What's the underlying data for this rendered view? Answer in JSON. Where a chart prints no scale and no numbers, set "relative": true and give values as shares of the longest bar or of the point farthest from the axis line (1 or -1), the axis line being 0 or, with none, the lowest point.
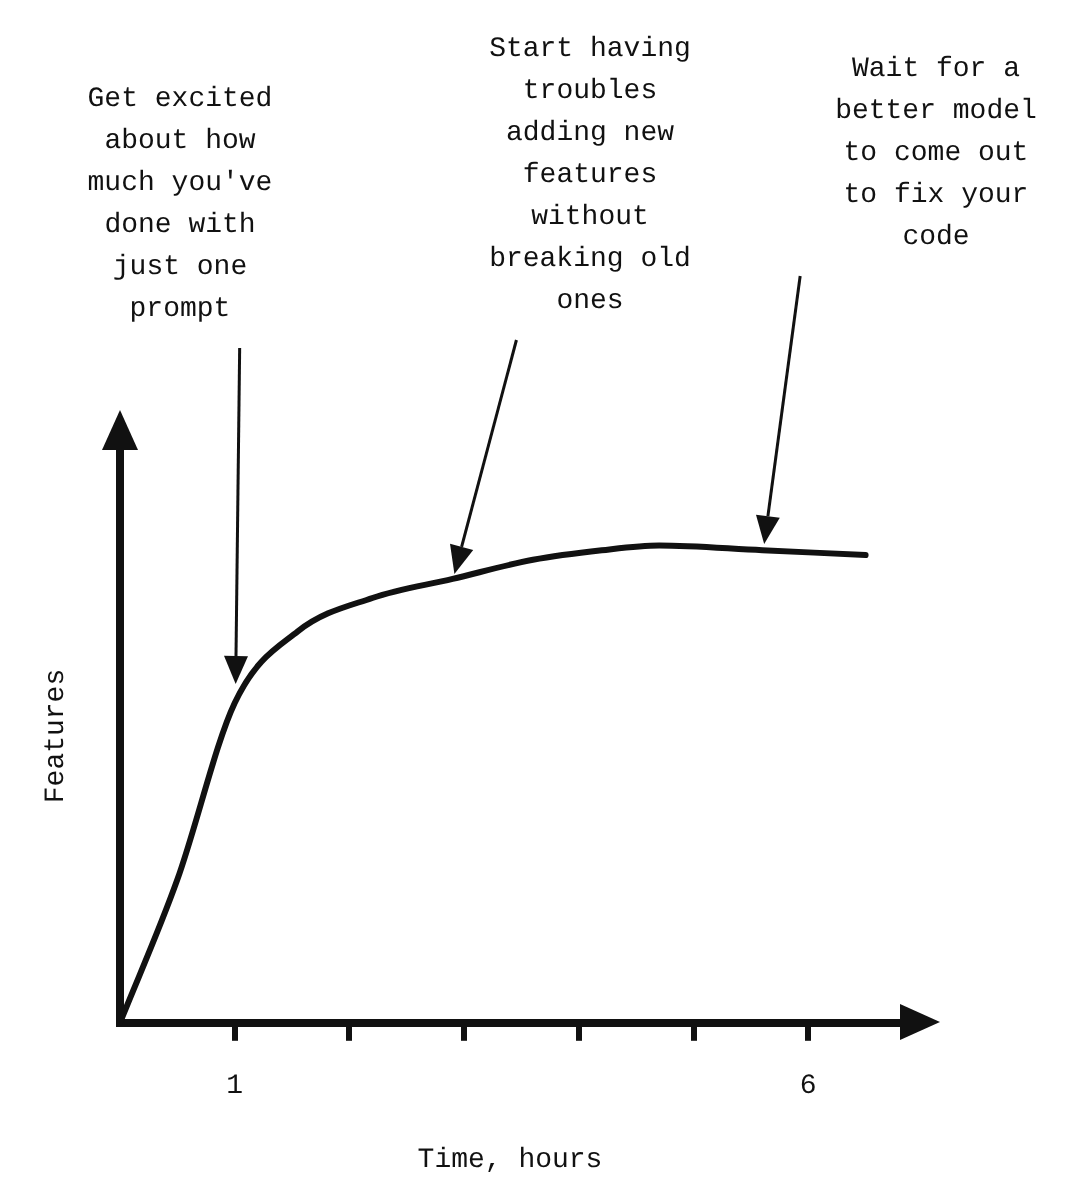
{
  "chart_data": {
    "type": "line",
    "relative": true,
    "xlabel": "Time, hours",
    "ylabel": "Features",
    "x": [
      0,
      0.5,
      1,
      1.55,
      2.2,
      2.9,
      3.6,
      4.2,
      4.7,
      5.6,
      6.5
    ],
    "series": [
      {
        "color": "#111111",
        "values": [
          0,
          0.3,
          0.67,
          0.82,
          0.89,
          0.93,
          0.97,
          0.99,
          1,
          0.99,
          0.98
        ]
      }
    ],
    "xlim": [
      0,
      6.8
    ],
    "xticks": [
      1,
      {
        "value": 2,
        "label": null
      },
      {
        "value": 3,
        "label": null
      },
      {
        "value": 4,
        "label": null
      },
      {
        "value": 5,
        "label": null
      },
      6
    ],
    "tick_labels": "x",
    "legend": false,
    "annotations": [
      "Get excited about how much you've done with just one prompt",
      "Start having troubles adding new features without breaking old ones",
      "Wait for a better model to come out to fix your code"
    ]
  }
}
